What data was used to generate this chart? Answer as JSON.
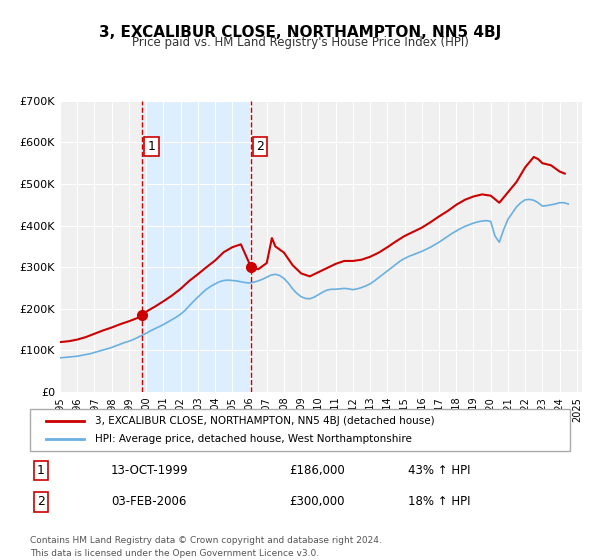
{
  "title": "3, EXCALIBUR CLOSE, NORTHAMPTON, NN5 4BJ",
  "subtitle": "Price paid vs. HM Land Registry's House Price Index (HPI)",
  "legend_line1": "3, EXCALIBUR CLOSE, NORTHAMPTON, NN5 4BJ (detached house)",
  "legend_line2": "HPI: Average price, detached house, West Northamptonshire",
  "footer1": "Contains HM Land Registry data © Crown copyright and database right 2024.",
  "footer2": "This data is licensed under the Open Government Licence v3.0.",
  "sale1_label": "1",
  "sale1_date": "13-OCT-1999",
  "sale1_price": "£186,000",
  "sale1_hpi": "43% ↑ HPI",
  "sale1_year": 1999.78,
  "sale1_value": 186000,
  "sale2_label": "2",
  "sale2_date": "03-FEB-2006",
  "sale2_price": "£300,000",
  "sale2_hpi": "18% ↑ HPI",
  "sale2_year": 2006.09,
  "sale2_value": 300000,
  "hpi_color": "#6ab0e0",
  "price_color": "#cc0000",
  "vline_color": "#cc0000",
  "shade_color": "#ddeeff",
  "ylim": [
    0,
    700000
  ],
  "xlim_start": 1995.0,
  "xlim_end": 2025.3,
  "yticks": [
    0,
    100000,
    200000,
    300000,
    400000,
    500000,
    600000,
    700000
  ],
  "ytick_labels": [
    "£0",
    "£100K",
    "£200K",
    "£300K",
    "£400K",
    "£500K",
    "£600K",
    "£700K"
  ],
  "xticks": [
    1995,
    1996,
    1997,
    1998,
    1999,
    2000,
    2001,
    2002,
    2003,
    2004,
    2005,
    2006,
    2007,
    2008,
    2009,
    2010,
    2011,
    2012,
    2013,
    2014,
    2015,
    2016,
    2017,
    2018,
    2019,
    2020,
    2021,
    2022,
    2023,
    2024,
    2025
  ],
  "hpi_data": {
    "years": [
      1995.0,
      1995.25,
      1995.5,
      1995.75,
      1996.0,
      1996.25,
      1996.5,
      1996.75,
      1997.0,
      1997.25,
      1997.5,
      1997.75,
      1998.0,
      1998.25,
      1998.5,
      1998.75,
      1999.0,
      1999.25,
      1999.5,
      1999.75,
      2000.0,
      2000.25,
      2000.5,
      2000.75,
      2001.0,
      2001.25,
      2001.5,
      2001.75,
      2002.0,
      2002.25,
      2002.5,
      2002.75,
      2003.0,
      2003.25,
      2003.5,
      2003.75,
      2004.0,
      2004.25,
      2004.5,
      2004.75,
      2005.0,
      2005.25,
      2005.5,
      2005.75,
      2006.0,
      2006.25,
      2006.5,
      2006.75,
      2007.0,
      2007.25,
      2007.5,
      2007.75,
      2008.0,
      2008.25,
      2008.5,
      2008.75,
      2009.0,
      2009.25,
      2009.5,
      2009.75,
      2010.0,
      2010.25,
      2010.5,
      2010.75,
      2011.0,
      2011.25,
      2011.5,
      2011.75,
      2012.0,
      2012.25,
      2012.5,
      2012.75,
      2013.0,
      2013.25,
      2013.5,
      2013.75,
      2014.0,
      2014.25,
      2014.5,
      2014.75,
      2015.0,
      2015.25,
      2015.5,
      2015.75,
      2016.0,
      2016.25,
      2016.5,
      2016.75,
      2017.0,
      2017.25,
      2017.5,
      2017.75,
      2018.0,
      2018.25,
      2018.5,
      2018.75,
      2019.0,
      2019.25,
      2019.5,
      2019.75,
      2020.0,
      2020.25,
      2020.5,
      2020.75,
      2021.0,
      2021.25,
      2021.5,
      2021.75,
      2022.0,
      2022.25,
      2022.5,
      2022.75,
      2023.0,
      2023.25,
      2023.5,
      2023.75,
      2024.0,
      2024.25,
      2024.5
    ],
    "values": [
      82000,
      83000,
      84000,
      85000,
      86000,
      88000,
      90000,
      92000,
      95000,
      98000,
      101000,
      104000,
      107000,
      111000,
      115000,
      119000,
      122000,
      126000,
      131000,
      136000,
      141000,
      147000,
      152000,
      157000,
      162000,
      168000,
      174000,
      180000,
      187000,
      196000,
      207000,
      218000,
      228000,
      238000,
      247000,
      254000,
      260000,
      265000,
      268000,
      269000,
      268000,
      267000,
      265000,
      263000,
      262000,
      264000,
      267000,
      271000,
      276000,
      281000,
      283000,
      280000,
      273000,
      262000,
      248000,
      237000,
      229000,
      225000,
      224000,
      228000,
      234000,
      240000,
      245000,
      247000,
      247000,
      248000,
      249000,
      248000,
      246000,
      248000,
      251000,
      255000,
      260000,
      267000,
      275000,
      283000,
      291000,
      299000,
      307000,
      315000,
      321000,
      326000,
      330000,
      334000,
      338000,
      343000,
      348000,
      354000,
      360000,
      367000,
      374000,
      381000,
      387000,
      393000,
      398000,
      402000,
      406000,
      409000,
      411000,
      412000,
      410000,
      375000,
      360000,
      390000,
      415000,
      430000,
      445000,
      455000,
      462000,
      463000,
      461000,
      455000,
      447000,
      448000,
      450000,
      452000,
      455000,
      455000,
      452000
    ]
  },
  "price_data": {
    "years": [
      1995.0,
      1995.5,
      1996.0,
      1996.5,
      1997.0,
      1997.5,
      1998.0,
      1998.5,
      1999.0,
      1999.5,
      1999.78,
      2000.0,
      2000.5,
      2001.0,
      2001.5,
      2002.0,
      2002.5,
      2003.0,
      2003.5,
      2004.0,
      2004.5,
      2005.0,
      2005.5,
      2006.09,
      2006.5,
      2007.0,
      2007.3,
      2007.5,
      2008.0,
      2008.5,
      2009.0,
      2009.5,
      2010.0,
      2010.5,
      2011.0,
      2011.5,
      2012.0,
      2012.5,
      2013.0,
      2013.5,
      2014.0,
      2014.5,
      2015.0,
      2015.5,
      2016.0,
      2016.5,
      2017.0,
      2017.5,
      2018.0,
      2018.5,
      2019.0,
      2019.5,
      2020.0,
      2020.5,
      2021.0,
      2021.5,
      2022.0,
      2022.5,
      2022.75,
      2023.0,
      2023.5,
      2024.0,
      2024.3
    ],
    "values": [
      120000,
      122000,
      126000,
      132000,
      140000,
      148000,
      155000,
      163000,
      170000,
      178000,
      186000,
      193000,
      205000,
      218000,
      232000,
      248000,
      267000,
      283000,
      300000,
      316000,
      336000,
      348000,
      355000,
      300000,
      295000,
      310000,
      370000,
      350000,
      335000,
      305000,
      285000,
      278000,
      288000,
      298000,
      308000,
      315000,
      315000,
      318000,
      325000,
      335000,
      348000,
      362000,
      375000,
      385000,
      395000,
      408000,
      422000,
      435000,
      450000,
      462000,
      470000,
      475000,
      472000,
      455000,
      480000,
      505000,
      540000,
      565000,
      560000,
      550000,
      545000,
      530000,
      525000
    ]
  }
}
